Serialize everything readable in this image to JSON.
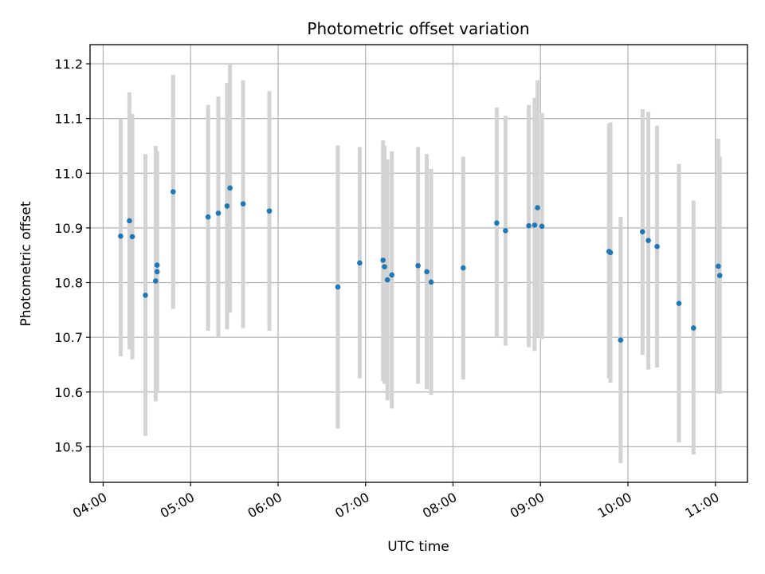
{
  "chart_data": {
    "type": "scatter",
    "title": "Photometric offset variation",
    "xlabel": "UTC time",
    "ylabel": "Photometric offset",
    "x_unit": "UTC hh:mm",
    "xlim": [
      "03:51",
      "11:22"
    ],
    "ylim": [
      10.435,
      11.235
    ],
    "x_ticks": [
      "04:00",
      "05:00",
      "06:00",
      "07:00",
      "08:00",
      "09:00",
      "10:00",
      "11:00"
    ],
    "y_ticks": [
      "10.5",
      "10.6",
      "10.7",
      "10.8",
      "10.9",
      "11.0",
      "11.1",
      "11.2"
    ],
    "grid": true,
    "colors": {
      "points": "#1f77b4",
      "error_bars": "#d3d3d3",
      "grid": "#b0b0b0"
    },
    "points": [
      {
        "x": "04:12",
        "y": 10.885,
        "y_low": 10.665,
        "y_high": 11.1
      },
      {
        "x": "04:18",
        "y": 10.913,
        "y_low": 10.678,
        "y_high": 11.148
      },
      {
        "x": "04:20",
        "y": 10.884,
        "y_low": 10.66,
        "y_high": 11.108
      },
      {
        "x": "04:29",
        "y": 10.777,
        "y_low": 10.52,
        "y_high": 11.035
      },
      {
        "x": "04:36",
        "y": 10.803,
        "y_low": 10.583,
        "y_high": 11.05
      },
      {
        "x": "04:37",
        "y": 10.832,
        "y_low": 10.6,
        "y_high": 11.04
      },
      {
        "x": "04:37",
        "y": 10.82,
        "y_low": 10.6,
        "y_high": 11.04
      },
      {
        "x": "04:48",
        "y": 10.966,
        "y_low": 10.752,
        "y_high": 11.18
      },
      {
        "x": "05:12",
        "y": 10.92,
        "y_low": 10.712,
        "y_high": 11.125
      },
      {
        "x": "05:19",
        "y": 10.927,
        "y_low": 10.7,
        "y_high": 11.14
      },
      {
        "x": "05:25",
        "y": 10.94,
        "y_low": 10.715,
        "y_high": 11.165
      },
      {
        "x": "05:27",
        "y": 10.973,
        "y_low": 10.745,
        "y_high": 11.2
      },
      {
        "x": "05:36",
        "y": 10.944,
        "y_low": 10.717,
        "y_high": 11.17
      },
      {
        "x": "05:54",
        "y": 10.931,
        "y_low": 10.712,
        "y_high": 11.15
      },
      {
        "x": "06:41",
        "y": 10.792,
        "y_low": 10.533,
        "y_high": 11.051
      },
      {
        "x": "06:56",
        "y": 10.836,
        "y_low": 10.625,
        "y_high": 11.048
      },
      {
        "x": "07:12",
        "y": 10.841,
        "y_low": 10.62,
        "y_high": 11.06
      },
      {
        "x": "07:13",
        "y": 10.829,
        "y_low": 10.615,
        "y_high": 11.05
      },
      {
        "x": "07:15",
        "y": 10.805,
        "y_low": 10.585,
        "y_high": 11.025
      },
      {
        "x": "07:18",
        "y": 10.814,
        "y_low": 10.57,
        "y_high": 11.04
      },
      {
        "x": "07:36",
        "y": 10.831,
        "y_low": 10.615,
        "y_high": 11.048
      },
      {
        "x": "07:42",
        "y": 10.82,
        "y_low": 10.605,
        "y_high": 11.035
      },
      {
        "x": "07:45",
        "y": 10.801,
        "y_low": 10.595,
        "y_high": 11.008
      },
      {
        "x": "08:07",
        "y": 10.827,
        "y_low": 10.623,
        "y_high": 11.03
      },
      {
        "x": "08:30",
        "y": 10.909,
        "y_low": 10.7,
        "y_high": 11.12
      },
      {
        "x": "08:36",
        "y": 10.895,
        "y_low": 10.685,
        "y_high": 11.105
      },
      {
        "x": "08:52",
        "y": 10.904,
        "y_low": 10.682,
        "y_high": 11.125
      },
      {
        "x": "08:56",
        "y": 10.905,
        "y_low": 10.675,
        "y_high": 11.138
      },
      {
        "x": "08:58",
        "y": 10.937,
        "y_low": 10.7,
        "y_high": 11.17
      },
      {
        "x": "09:01",
        "y": 10.903,
        "y_low": 10.697,
        "y_high": 11.11
      },
      {
        "x": "09:47",
        "y": 10.857,
        "y_low": 10.625,
        "y_high": 11.09
      },
      {
        "x": "09:48",
        "y": 10.855,
        "y_low": 10.617,
        "y_high": 11.093
      },
      {
        "x": "09:55",
        "y": 10.695,
        "y_low": 10.47,
        "y_high": 10.92
      },
      {
        "x": "10:10",
        "y": 10.893,
        "y_low": 10.668,
        "y_high": 11.117
      },
      {
        "x": "10:14",
        "y": 10.877,
        "y_low": 10.641,
        "y_high": 11.112
      },
      {
        "x": "10:20",
        "y": 10.866,
        "y_low": 10.645,
        "y_high": 11.087
      },
      {
        "x": "10:35",
        "y": 10.762,
        "y_low": 10.508,
        "y_high": 11.017
      },
      {
        "x": "10:45",
        "y": 10.717,
        "y_low": 10.486,
        "y_high": 10.95
      },
      {
        "x": "11:02",
        "y": 10.83,
        "y_low": 10.597,
        "y_high": 11.063
      },
      {
        "x": "11:03",
        "y": 10.813,
        "y_low": 10.597,
        "y_high": 11.03
      }
    ]
  }
}
